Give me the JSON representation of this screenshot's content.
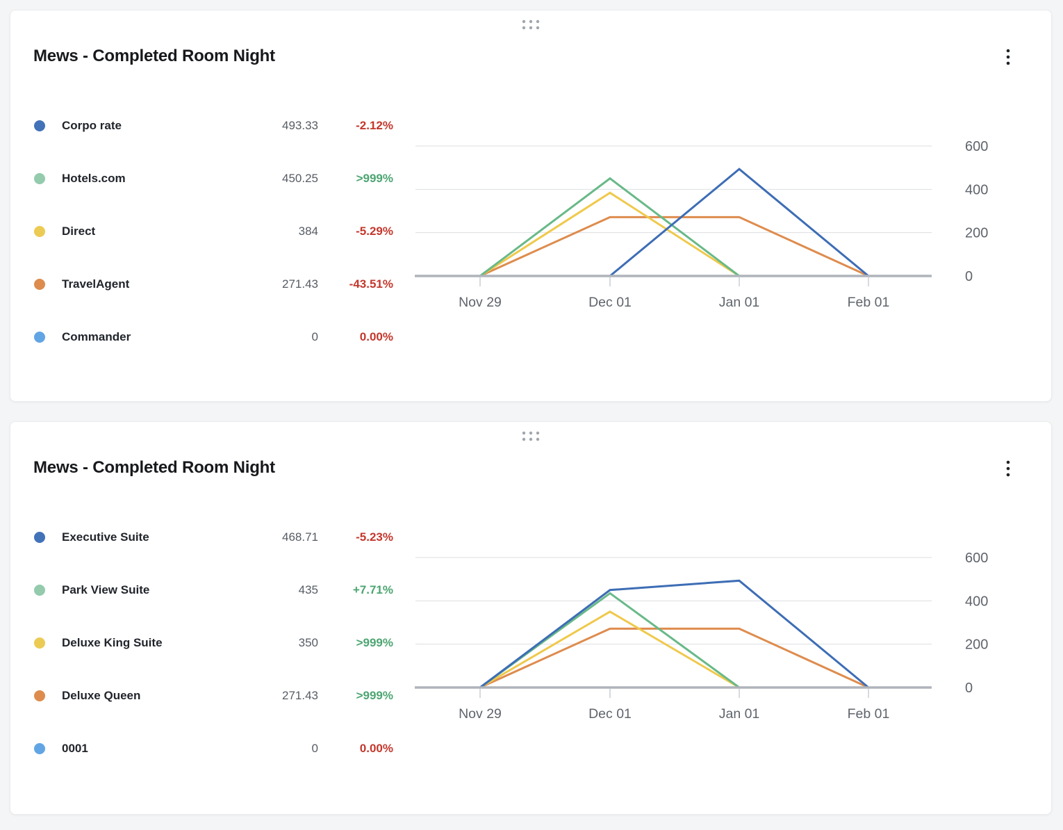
{
  "page": {
    "background": "#F4F5F6"
  },
  "colors": {
    "negative": "#C4372C",
    "positive": "#4CA571",
    "axis_text": "#5F646B",
    "grid_line": "#DCDEE1",
    "baseline": "#AFB4BB",
    "tick_mark": "#C9CDD2",
    "drag_handle_dots": "#A0A6AD",
    "kebab_dots": "#1F2328"
  },
  "cards": [
    {
      "title": "Mews - Completed Room Night",
      "legend": [
        {
          "label": "Corpo rate",
          "value": "493.33",
          "change": "-2.12%",
          "trend": "negative",
          "color": "#4272B8"
        },
        {
          "label": "Hotels.com",
          "value": "450.25",
          "change": ">999%",
          "trend": "positive",
          "color": "#93CBAC"
        },
        {
          "label": "Direct",
          "value": "384",
          "change": "-5.29%",
          "trend": "negative",
          "color": "#ECCB54"
        },
        {
          "label": "TravelAgent",
          "value": "271.43",
          "change": "-43.51%",
          "trend": "negative",
          "color": "#DD8C4D"
        },
        {
          "label": "Commander",
          "value": "0",
          "change": "0.00%",
          "trend": "negative",
          "color": "#62A5E4"
        }
      ]
    },
    {
      "title": "Mews - Completed Room Night",
      "legend": [
        {
          "label": "Executive Suite",
          "value": "468.71",
          "change": "-5.23%",
          "trend": "negative",
          "color": "#4272B8"
        },
        {
          "label": "Park View Suite",
          "value": "435",
          "change": "+7.71%",
          "trend": "positive",
          "color": "#93CBAC"
        },
        {
          "label": "Deluxe King Suite",
          "value": "350",
          "change": ">999%",
          "trend": "positive",
          "color": "#ECCB54"
        },
        {
          "label": "Deluxe Queen",
          "value": "271.43",
          "change": ">999%",
          "trend": "positive",
          "color": "#DD8C4D"
        },
        {
          "label": "0001",
          "value": "0",
          "change": "0.00%",
          "trend": "negative",
          "color": "#62A5E4"
        }
      ]
    }
  ],
  "chart_data": [
    {
      "type": "line",
      "title": "Mews - Completed Room Night",
      "categories": [
        "Nov 29",
        "Dec 01",
        "Jan 01",
        "Feb 01"
      ],
      "series": [
        {
          "name": "Corpo rate",
          "color": "#3D6DB5",
          "values": [
            null,
            0,
            493.33,
            0
          ]
        },
        {
          "name": "Hotels.com",
          "color": "#68B988",
          "values": [
            0,
            450.25,
            0,
            null
          ]
        },
        {
          "name": "Direct",
          "color": "#EFC94C",
          "values": [
            0,
            384,
            0,
            null
          ]
        },
        {
          "name": "TravelAgent",
          "color": "#DE8C4E",
          "values": [
            0,
            271.43,
            271.43,
            0
          ]
        },
        {
          "name": "Commander",
          "color": "#62A5E4",
          "values": [
            0,
            0,
            0,
            0
          ]
        }
      ],
      "y_ticks": [
        600,
        400,
        200,
        0
      ],
      "ylim": [
        0,
        650
      ],
      "grid": "horizontal",
      "legend_position": "left",
      "y_axis_position": "right"
    },
    {
      "type": "line",
      "title": "Mews - Completed Room Night",
      "categories": [
        "Nov 29",
        "Dec 01",
        "Jan 01",
        "Feb 01"
      ],
      "series": [
        {
          "name": "Executive Suite",
          "color": "#3D6DB5",
          "values": [
            0,
            450,
            493,
            0
          ]
        },
        {
          "name": "Park View Suite",
          "color": "#68B988",
          "values": [
            0,
            435,
            0,
            null
          ]
        },
        {
          "name": "Deluxe King Suite",
          "color": "#EFC94C",
          "values": [
            0,
            350,
            0,
            null
          ]
        },
        {
          "name": "Deluxe Queen",
          "color": "#DE8C4E",
          "values": [
            0,
            271.43,
            271.43,
            0
          ]
        },
        {
          "name": "0001",
          "color": "#62A5E4",
          "values": [
            0,
            0,
            0,
            0
          ]
        }
      ],
      "y_ticks": [
        600,
        400,
        200,
        0
      ],
      "ylim": [
        0,
        650
      ],
      "grid": "horizontal",
      "legend_position": "left",
      "y_axis_position": "right"
    }
  ]
}
